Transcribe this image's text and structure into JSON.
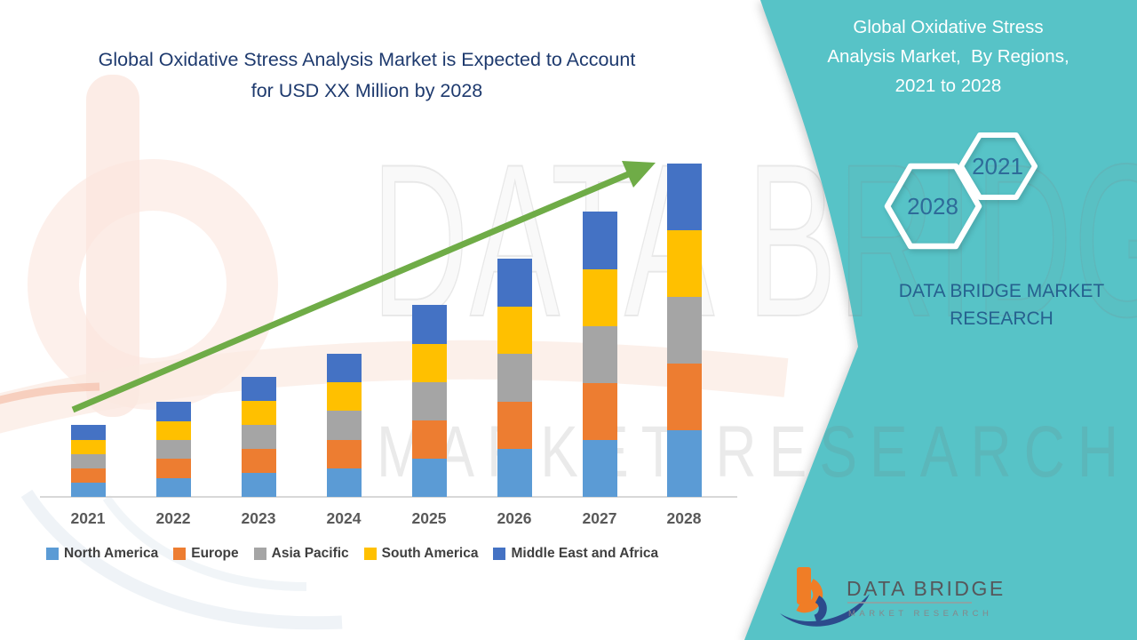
{
  "left_title": {
    "text": "Global Oxidative Stress Analysis Market is Expected to Account\nfor USD XX Million by 2028"
  },
  "right_panel": {
    "title": "Global Oxidative Stress\nAnalysis Market,  By Regions,\n2021 to 2028",
    "hexagons": [
      {
        "label": "2028"
      },
      {
        "label": "2021"
      }
    ],
    "brand_text": "DATA BRIDGE MARKET\nRESEARCH"
  },
  "watermark": {
    "big_text": "DATA BRIDGE",
    "sub_text": "MARKET RESEARCH"
  },
  "logo": {
    "brand": "DATA BRIDGE",
    "tagline": "MARKET  RESEARCH"
  },
  "colors": {
    "teal_panel": "#57C3C7",
    "arrow_green": "#6FAC47",
    "title_navy": "#1E3A6E",
    "panel_text_blue": "#26618F",
    "hexagon_year_blue": "#2E6B99",
    "axis_gray": "#D8D8D8",
    "year_label_gray": "#595959",
    "legend_text_gray": "#3F3F3F",
    "logo_orange": "#F07D26",
    "logo_navy": "#2C4B8C",
    "watermark_peach": "#FBE6DD"
  },
  "chart_data": {
    "type": "bar",
    "stacked": true,
    "title": "Global Oxidative Stress Analysis Market, By Regions, 2021 to 2028",
    "xlabel": "",
    "ylabel": "",
    "unit_note": "actual values masked in source as 'USD XX Million'; values below are relative index (2028 total = 100)",
    "categories": [
      "2021",
      "2022",
      "2023",
      "2024",
      "2025",
      "2026",
      "2027",
      "2028"
    ],
    "series": [
      {
        "name": "North America",
        "color": "#5B9BD5",
        "values": [
          4.3,
          5.7,
          7.2,
          8.6,
          11.5,
          14.3,
          17.1,
          20.0
        ]
      },
      {
        "name": "Europe",
        "color": "#ED7D31",
        "values": [
          4.3,
          5.7,
          7.2,
          8.6,
          11.5,
          14.3,
          17.1,
          20.0
        ]
      },
      {
        "name": "Asia Pacific",
        "color": "#A5A5A5",
        "values": [
          4.3,
          5.7,
          7.2,
          8.6,
          11.5,
          14.3,
          17.1,
          20.0
        ]
      },
      {
        "name": "South America",
        "color": "#FFC000",
        "values": [
          4.3,
          5.7,
          7.2,
          8.6,
          11.5,
          14.3,
          17.1,
          20.0
        ]
      },
      {
        "name": "Middle East and Africa",
        "color": "#4472C4",
        "values": [
          4.3,
          5.7,
          7.2,
          8.6,
          11.5,
          14.3,
          17.1,
          20.0
        ]
      }
    ],
    "totals": [
      21.5,
      28.5,
      36.0,
      43.0,
      57.5,
      71.5,
      85.5,
      100.0
    ],
    "ylim": [
      0,
      107
    ],
    "grid": false,
    "y_axis_shown": false,
    "legend_position": "bottom",
    "annotations": [
      "green upward trend arrow from 2021 to 2028"
    ]
  }
}
